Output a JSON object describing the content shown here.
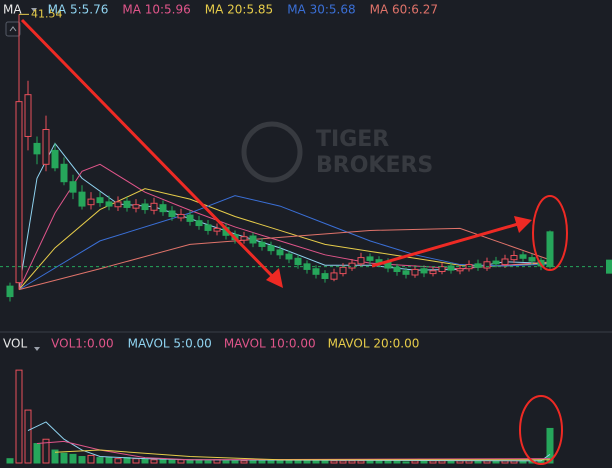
{
  "chart_data": [
    {
      "type": "candlestick",
      "title": "MA",
      "watermark": [
        "TIGER",
        "BROKERS"
      ],
      "up_color": "#e8505b",
      "down_color": "#26a65b",
      "ylim": [
        -3.8,
        43.6
      ],
      "last_price_line": true,
      "open": [
        2.5,
        3,
        24,
        23,
        20,
        22,
        20,
        17.5,
        16,
        14.2,
        15.2,
        14.6,
        13.9,
        14.7,
        13.7,
        14.3,
        13.4,
        14.2,
        13.3,
        12.3,
        12.7,
        11.9,
        11.3,
        10.4,
        10.9,
        9.9,
        9.1,
        9.7,
        8.8,
        8.3,
        7.7,
        7.1,
        6.5,
        5.7,
        5.0,
        4.3,
        3.5,
        4.3,
        5.1,
        5.7,
        6.7,
        6.3,
        6.0,
        5.2,
        4.7,
        4.1,
        5.0,
        4.3,
        4.6,
        5.4,
        4.7,
        5.0,
        5.7,
        5.1,
        6.1,
        5.6,
        6.3,
        7.0,
        6.6,
        6.2,
        10.3
      ],
      "high": [
        3.0,
        41.54,
        32,
        24,
        27,
        23,
        21,
        18.5,
        17,
        16,
        16,
        15.5,
        15.4,
        15.3,
        15,
        15,
        15.2,
        14.8,
        14,
        13.6,
        13.4,
        12.6,
        12,
        11.5,
        11.5,
        10.5,
        10.3,
        10.2,
        9.4,
        8.9,
        8.3,
        7.6,
        7.0,
        6.2,
        5.5,
        4.8,
        5.0,
        5.8,
        6.4,
        7.3,
        7.2,
        6.8,
        6.5,
        5.7,
        5.2,
        5.5,
        5.5,
        5.2,
        5.9,
        5.9,
        5.5,
        6.2,
        6.3,
        6.6,
        6.7,
        7.0,
        7.6,
        7.5,
        7.1,
        6.6,
        10.5
      ],
      "low": [
        0.3,
        2,
        22,
        20,
        19,
        19,
        17,
        15,
        13.5,
        13.5,
        13.9,
        13.4,
        13.3,
        13.2,
        13.1,
        12.9,
        12.8,
        12.6,
        11.9,
        11.8,
        11.2,
        10.6,
        9.9,
        9.8,
        9.2,
        8.6,
        8.6,
        8.1,
        7.6,
        7.0,
        6.4,
        5.8,
        5.0,
        4.3,
        3.6,
        3.0,
        3.2,
        3.9,
        4.7,
        5.3,
        5.6,
        5.3,
        4.5,
        4.0,
        3.6,
        3.7,
        3.8,
        3.9,
        4.2,
        4.3,
        4.2,
        4.6,
        4.7,
        4.7,
        5.2,
        5.1,
        5.8,
        6.0,
        5.6,
        4.8,
        5.0
      ],
      "close": [
        1.0,
        29,
        30,
        21.5,
        25,
        19.5,
        17.5,
        16,
        14,
        15,
        14.5,
        14,
        14.6,
        13.8,
        14.2,
        13.5,
        14.4,
        13.2,
        12.5,
        12.8,
        11.8,
        11.2,
        10.5,
        10.8,
        9.8,
        9.2,
        9.6,
        8.7,
        8.2,
        7.6,
        7.0,
        6.4,
        5.6,
        4.9,
        4.2,
        3.6,
        4.4,
        5.2,
        5.8,
        6.6,
        6.2,
        5.9,
        5.1,
        4.6,
        4.2,
        4.9,
        4.4,
        4.7,
        5.3,
        4.8,
        5.0,
        5.6,
        5.2,
        6.0,
        5.7,
        6.4,
        6.9,
        6.5,
        6.1,
        5.4,
        5.3
      ],
      "lines": [
        {
          "name": "MA 5:5.76",
          "color": "#8fd3f0",
          "x": [
            1,
            3,
            5,
            8,
            12,
            16,
            20,
            25,
            30,
            35,
            40,
            45,
            50,
            55,
            60
          ],
          "values": [
            2,
            18,
            23,
            18,
            14.3,
            13.9,
            12.2,
            10,
            8,
            5.5,
            5.5,
            4.8,
            4.9,
            6,
            5.76
          ]
        },
        {
          "name": "MA 10:5.96",
          "color": "#e0558a",
          "x": [
            1,
            5,
            8,
            10,
            15,
            20,
            25,
            30,
            35,
            40,
            45,
            50,
            55,
            60
          ],
          "values": [
            2,
            13,
            19,
            20,
            16,
            13.4,
            11,
            9,
            7,
            5.8,
            5.4,
            5,
            5.5,
            5.96
          ]
        },
        {
          "name": "MA 20:5.85",
          "color": "#e6cc4a",
          "x": [
            1,
            5,
            10,
            15,
            20,
            25,
            30,
            35,
            40,
            45,
            50,
            55,
            60
          ],
          "values": [
            2,
            8,
            13.5,
            16.5,
            15,
            12.5,
            10.5,
            8.5,
            7.5,
            6.5,
            5.5,
            5.4,
            5.85
          ]
        },
        {
          "name": "MA 30:5.68",
          "color": "#3a6fd6",
          "x": [
            1,
            10,
            20,
            25,
            30,
            35,
            40,
            45,
            50,
            55,
            60
          ],
          "values": [
            2,
            9,
            13,
            15.5,
            14,
            11.5,
            9,
            7,
            5.6,
            5.4,
            5.68
          ]
        },
        {
          "name": "MA 60:6.27",
          "color": "#e0736a",
          "x": [
            1,
            10,
            20,
            30,
            40,
            50,
            60
          ],
          "values": [
            2,
            5,
            8.5,
            9.5,
            10.5,
            10.8,
            6.27
          ]
        }
      ]
    },
    {
      "type": "volume",
      "title": "VOL",
      "series_name": "VOL1:0.00",
      "series_color": "#e0558a",
      "ylim": [
        0,
        100
      ],
      "values": [
        4,
        86,
        49,
        18,
        22,
        12,
        9,
        8,
        6,
        7,
        5,
        5,
        4,
        5,
        4,
        4,
        3,
        4,
        3,
        3,
        3,
        3,
        2,
        3,
        2,
        2,
        2,
        2,
        2,
        2,
        2,
        2,
        2,
        2,
        3,
        2,
        2,
        2,
        2,
        2,
        2,
        2,
        2,
        2,
        1,
        2,
        2,
        2,
        2,
        2,
        2,
        2,
        2,
        2,
        2,
        2,
        2,
        2,
        2,
        3,
        32
      ],
      "lines": [
        {
          "name": "MAVOL 5:0.00",
          "color": "#8fd3f0",
          "x": [
            2,
            4,
            6,
            8,
            10,
            15,
            20,
            59,
            60
          ],
          "values": [
            30,
            38,
            22,
            12,
            6,
            4,
            3,
            2,
            8
          ]
        },
        {
          "name": "MAVOL 10:0.00",
          "color": "#e0558a",
          "x": [
            3,
            6,
            10,
            15,
            20,
            60
          ],
          "values": [
            18,
            20,
            12,
            5,
            3,
            4
          ]
        },
        {
          "name": "MAVOL 20:0.00",
          "color": "#e6cc4a",
          "x": [
            5,
            10,
            20,
            30,
            60
          ],
          "values": [
            10,
            12,
            6,
            3,
            3
          ]
        }
      ]
    }
  ]
}
